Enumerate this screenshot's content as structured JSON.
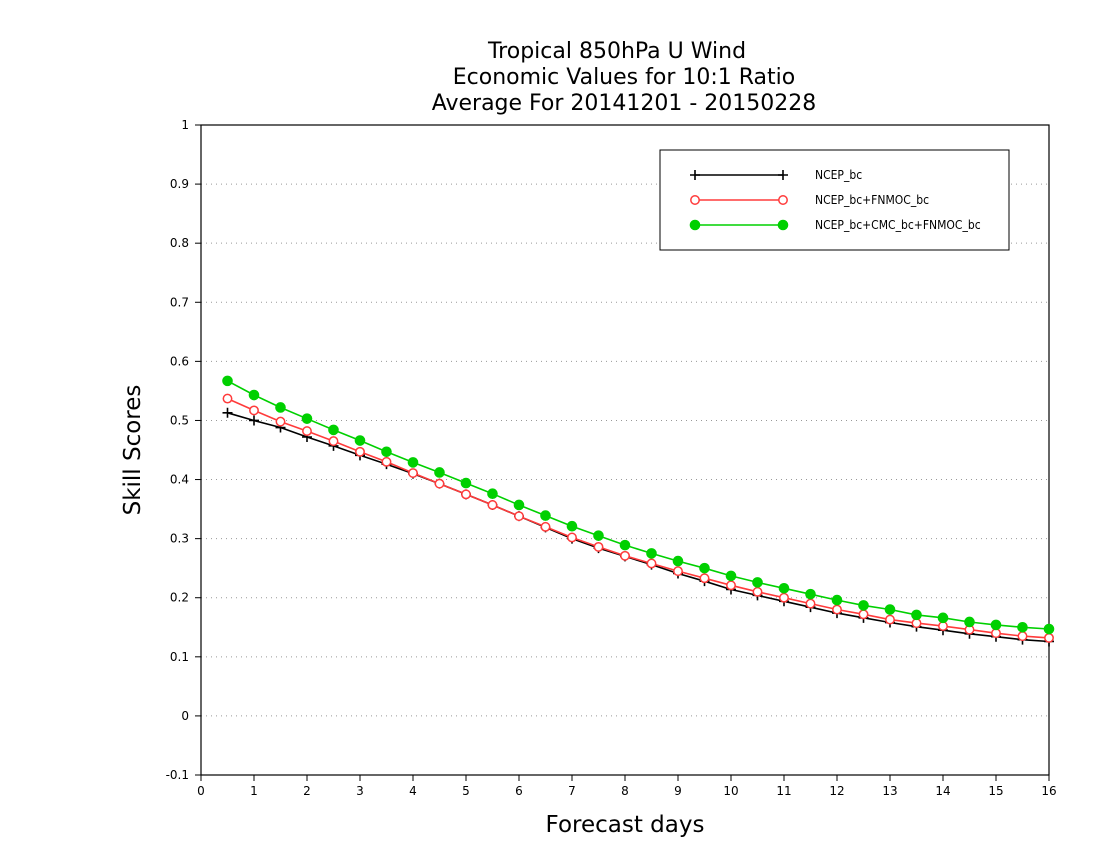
{
  "chart_data": {
    "type": "line",
    "title_lines": [
      "Tropical 850hPa U Wind",
      "Economic Values for 10:1 Ratio",
      "Average For 20141201 - 20150228"
    ],
    "xlabel": "Forecast days",
    "ylabel": "Skill Scores",
    "xlim": [
      0,
      16
    ],
    "ylim": [
      -0.1,
      1
    ],
    "x_ticks": [
      0,
      1,
      2,
      3,
      4,
      5,
      6,
      7,
      8,
      9,
      10,
      11,
      12,
      13,
      14,
      15,
      16
    ],
    "y_ticks": [
      -0.1,
      0,
      0.1,
      0.2,
      0.3,
      0.4,
      0.5,
      0.6,
      0.7,
      0.8,
      0.9,
      1
    ],
    "y_tick_labels": [
      "-0.1",
      "0",
      "0.1",
      "0.2",
      "0.3",
      "0.4",
      "0.5",
      "0.6",
      "0.7",
      "0.8",
      "0.9",
      "1"
    ],
    "grid": "horizontal dotted",
    "legend_position": "top-right",
    "x": [
      0.5,
      1,
      1.5,
      2,
      2.5,
      3,
      3.5,
      4,
      4.5,
      5,
      5.5,
      6,
      6.5,
      7,
      7.5,
      8,
      8.5,
      9,
      9.5,
      10,
      10.5,
      11,
      11.5,
      12,
      12.5,
      13,
      13.5,
      14,
      14.5,
      15,
      15.5,
      16
    ],
    "series": [
      {
        "name": "NCEP_bc",
        "color": "#000000",
        "marker": "plus",
        "values": [
          0.513,
          0.5,
          0.488,
          0.472,
          0.457,
          0.441,
          0.426,
          0.41,
          0.393,
          0.375,
          0.357,
          0.338,
          0.319,
          0.3,
          0.284,
          0.27,
          0.256,
          0.241,
          0.228,
          0.214,
          0.204,
          0.194,
          0.184,
          0.174,
          0.166,
          0.158,
          0.151,
          0.145,
          0.139,
          0.134,
          0.129,
          0.126
        ]
      },
      {
        "name": "NCEP_bc+FNMOC_bc",
        "color": "#ff3b3b",
        "marker": "open-circle",
        "values": [
          0.537,
          0.517,
          0.498,
          0.482,
          0.465,
          0.447,
          0.43,
          0.411,
          0.393,
          0.375,
          0.357,
          0.338,
          0.32,
          0.302,
          0.286,
          0.271,
          0.258,
          0.245,
          0.233,
          0.221,
          0.21,
          0.2,
          0.19,
          0.18,
          0.172,
          0.163,
          0.157,
          0.152,
          0.146,
          0.14,
          0.135,
          0.132
        ]
      },
      {
        "name": "NCEP_bc+CMC_bc+FNMOC_bc",
        "color": "#00d000",
        "marker": "filled-circle",
        "values": [
          0.567,
          0.543,
          0.522,
          0.503,
          0.484,
          0.466,
          0.447,
          0.429,
          0.412,
          0.394,
          0.376,
          0.357,
          0.339,
          0.321,
          0.305,
          0.289,
          0.275,
          0.262,
          0.25,
          0.237,
          0.226,
          0.216,
          0.206,
          0.196,
          0.187,
          0.18,
          0.171,
          0.166,
          0.159,
          0.154,
          0.15,
          0.147
        ]
      }
    ]
  }
}
